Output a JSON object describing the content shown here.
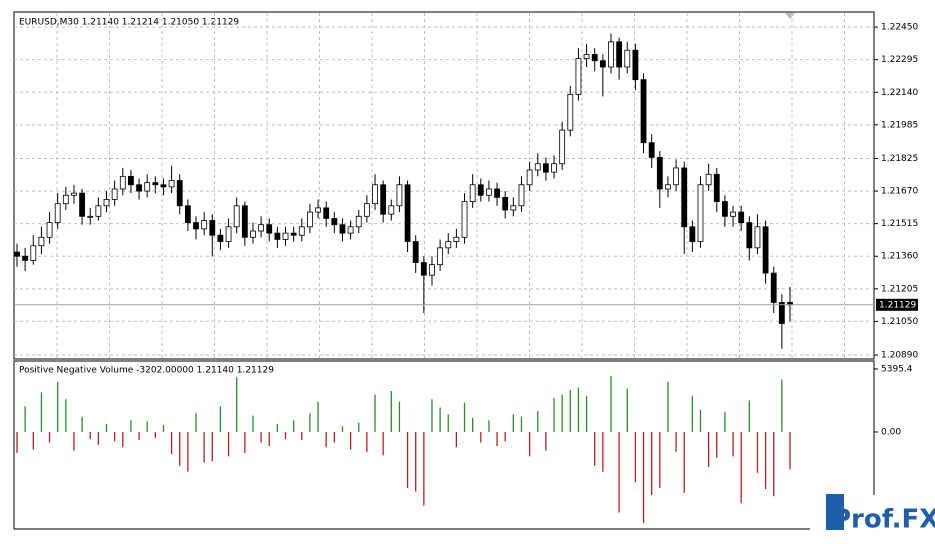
{
  "chart_data": [
    {
      "type": "candlestick",
      "title": "EURUSD,M30  1.21140 1.21214 1.21050 1.21129",
      "open": [
        1.2138,
        1.2136,
        1.2134,
        1.2141,
        1.2145,
        1.2152,
        1.2161,
        1.2165,
        1.2166,
        1.2155,
        1.2155,
        1.216,
        1.2163,
        1.2168,
        1.2174,
        1.217,
        1.2167,
        1.2171,
        1.217,
        1.2169,
        1.2172,
        1.216,
        1.2152,
        1.2149,
        1.2153,
        1.2146,
        1.2143,
        1.215,
        1.216,
        1.2145,
        1.2148,
        1.2151,
        1.2147,
        1.2144,
        1.2147,
        1.2146,
        1.215,
        1.2157,
        1.2159,
        1.2154,
        1.2151,
        1.2147,
        1.215,
        1.2155,
        1.2161,
        1.217,
        1.2156,
        1.216,
        1.217,
        1.2143,
        1.2133,
        1.2127,
        1.2132,
        1.214,
        1.2143,
        1.2145,
        1.2162,
        1.217,
        1.2165,
        1.2168,
        1.2164,
        1.2158,
        1.216,
        1.217,
        1.2177,
        1.218,
        1.2176,
        1.218,
        1.2196,
        1.2213,
        1.223,
        1.2232,
        1.2229,
        1.2226,
        1.2238,
        1.2226,
        1.2234,
        1.222,
        1.219,
        1.2183,
        1.2168,
        1.217,
        1.2178,
        1.215,
        1.2143,
        1.217,
        1.2175,
        1.2162,
        1.2155,
        1.2157,
        1.2152,
        1.214,
        1.215,
        1.2128,
        1.2114,
        1.2114
      ],
      "high": [
        1.2142,
        1.214,
        1.2146,
        1.215,
        1.2157,
        1.2166,
        1.2169,
        1.217,
        1.2168,
        1.2159,
        1.2164,
        1.2167,
        1.2172,
        1.2178,
        1.2177,
        1.2173,
        1.2175,
        1.2174,
        1.2173,
        1.2179,
        1.2175,
        1.2163,
        1.2155,
        1.2157,
        1.2156,
        1.2149,
        1.2154,
        1.2164,
        1.2162,
        1.2152,
        1.2155,
        1.2154,
        1.215,
        1.215,
        1.215,
        1.2154,
        1.2161,
        1.2163,
        1.2162,
        1.2157,
        1.2154,
        1.2153,
        1.2158,
        1.2165,
        1.2175,
        1.2172,
        1.2163,
        1.2174,
        1.2172,
        1.2146,
        1.2136,
        1.2136,
        1.2144,
        1.2147,
        1.2149,
        1.2166,
        1.2175,
        1.2173,
        1.2172,
        1.2171,
        1.2167,
        1.2164,
        1.2174,
        1.2181,
        1.2185,
        1.2183,
        1.2184,
        1.22,
        1.2217,
        1.2235,
        1.2237,
        1.2235,
        1.2232,
        1.2242,
        1.224,
        1.2238,
        1.2237,
        1.2223,
        1.2194,
        1.2186,
        1.2174,
        1.2182,
        1.2181,
        1.2153,
        1.2174,
        1.218,
        1.2178,
        1.2165,
        1.216,
        1.216,
        1.2155,
        1.2156,
        1.2153,
        1.2131,
        1.2118,
        1.21214
      ],
      "low": [
        1.2131,
        1.2129,
        1.2132,
        1.2137,
        1.2142,
        1.2149,
        1.2158,
        1.2161,
        1.2151,
        1.2151,
        1.2153,
        1.2157,
        1.216,
        1.2165,
        1.2166,
        1.2163,
        1.2164,
        1.2166,
        1.2165,
        1.2166,
        1.2156,
        1.2148,
        1.2144,
        1.2146,
        1.2136,
        1.2139,
        1.214,
        1.2147,
        1.2141,
        1.2142,
        1.2145,
        1.2143,
        1.214,
        1.2141,
        1.2143,
        1.2143,
        1.2147,
        1.2154,
        1.215,
        1.2147,
        1.2143,
        1.2144,
        1.2147,
        1.2152,
        1.2158,
        1.2152,
        1.2153,
        1.2157,
        1.2138,
        1.2128,
        1.2109,
        1.2122,
        1.2129,
        1.2137,
        1.214,
        1.2142,
        1.2159,
        1.2162,
        1.2162,
        1.216,
        1.2154,
        1.2155,
        1.2157,
        1.2167,
        1.2174,
        1.2172,
        1.2173,
        1.2177,
        1.2193,
        1.221,
        1.2226,
        1.2224,
        1.2212,
        1.2223,
        1.222,
        1.2223,
        1.2215,
        1.2185,
        1.2178,
        1.2159,
        1.2164,
        1.2167,
        1.2137,
        1.2138,
        1.214,
        1.2167,
        1.2157,
        1.215,
        1.215,
        1.2148,
        1.2134,
        1.2137,
        1.2123,
        1.2109,
        1.2092,
        1.2105
      ],
      "close": [
        1.2136,
        1.2134,
        1.2141,
        1.2145,
        1.2152,
        1.2161,
        1.2165,
        1.2166,
        1.2155,
        1.2155,
        1.216,
        1.2163,
        1.2168,
        1.2174,
        1.217,
        1.2167,
        1.2171,
        1.217,
        1.2169,
        1.2172,
        1.216,
        1.2152,
        1.2149,
        1.2153,
        1.2146,
        1.2143,
        1.215,
        1.216,
        1.2145,
        1.2148,
        1.2151,
        1.2147,
        1.2144,
        1.2147,
        1.2146,
        1.215,
        1.2157,
        1.2159,
        1.2154,
        1.2151,
        1.2147,
        1.215,
        1.2155,
        1.2161,
        1.217,
        1.2156,
        1.216,
        1.217,
        1.2143,
        1.2133,
        1.2127,
        1.2132,
        1.214,
        1.2143,
        1.2145,
        1.2162,
        1.217,
        1.2165,
        1.2168,
        1.2164,
        1.2158,
        1.216,
        1.217,
        1.2177,
        1.218,
        1.2176,
        1.218,
        1.2196,
        1.2213,
        1.223,
        1.2232,
        1.2229,
        1.2226,
        1.2238,
        1.2226,
        1.2234,
        1.222,
        1.219,
        1.2183,
        1.2168,
        1.217,
        1.2178,
        1.215,
        1.2143,
        1.217,
        1.2175,
        1.2162,
        1.2155,
        1.2157,
        1.2152,
        1.214,
        1.215,
        1.2128,
        1.2114,
        1.2104,
        1.21129
      ],
      "up_color": "#ffffff",
      "down_color": "#000000",
      "line_color": "#000000",
      "ylim": [
        1.20876,
        1.22517
      ],
      "yticks": [
        {
          "value": 1.2245,
          "label": "1.22450"
        },
        {
          "value": 1.22295,
          "label": "1.22295"
        },
        {
          "value": 1.2214,
          "label": "1.22140"
        },
        {
          "value": 1.21985,
          "label": "1.21985"
        },
        {
          "value": 1.21825,
          "label": "1.21825"
        },
        {
          "value": 1.2167,
          "label": "1.21670"
        },
        {
          "value": 1.21515,
          "label": "1.21515"
        },
        {
          "value": 1.2136,
          "label": "1.21360"
        },
        {
          "value": 1.21205,
          "label": "1.21205"
        },
        {
          "value": 1.2105,
          "label": "1.21050"
        },
        {
          "value": 1.2089,
          "label": "1.20890"
        }
      ],
      "grid": true
    },
    {
      "type": "bar",
      "title": "Positive Negative Volume -3202.00000 1.21140 1.21129",
      "values": [
        -1800,
        2200,
        -1500,
        3400,
        -900,
        4300,
        2800,
        -1600,
        1300,
        -600,
        -1100,
        700,
        -800,
        -1300,
        1000,
        -700,
        900,
        -500,
        600,
        -1900,
        -2900,
        -3400,
        1600,
        -2600,
        -2500,
        2200,
        -2100,
        4700,
        -1800,
        1400,
        -900,
        -1200,
        700,
        -600,
        1000,
        -700,
        1600,
        2600,
        -1300,
        -900,
        500,
        -1500,
        800,
        -1700,
        3200,
        -2000,
        3500,
        2600,
        -4800,
        -5100,
        -6300,
        2800,
        2100,
        1500,
        -1300,
        2500,
        1200,
        -900,
        1000,
        -1200,
        -800,
        1500,
        1300,
        -2100,
        1800,
        -1600,
        2900,
        3200,
        3600,
        3800,
        3100,
        -2900,
        -3400,
        4800,
        -6900,
        3700,
        -4300,
        -7800,
        -5400,
        -4800,
        4300,
        -1700,
        -5200,
        3100,
        1900,
        -3000,
        -2200,
        1700,
        -2100,
        -6100,
        2700,
        -3500,
        -4900,
        -5500,
        4500,
        -3202
      ],
      "positive_color": "#2e8b2e",
      "negative_color": "#b22222",
      "ylim": [
        -8220,
        5990
      ],
      "yticks": [
        5395.4,
        {
          "value": 0,
          "label": "0.00"
        }
      ],
      "grid": false
    }
  ],
  "watermark": "Prof.FX"
}
